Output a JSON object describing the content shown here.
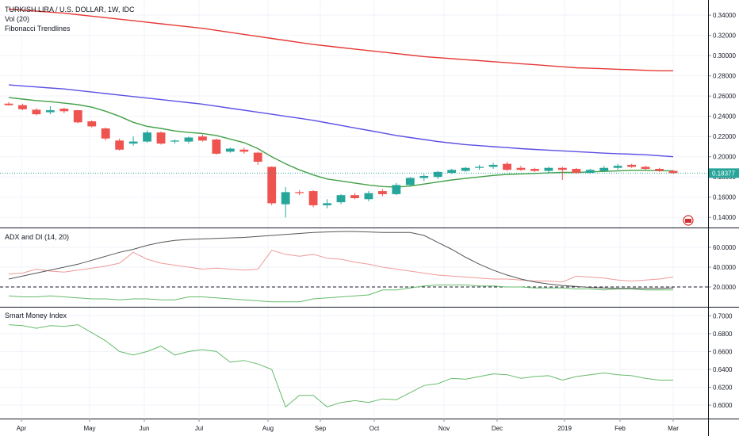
{
  "header": {
    "symbol_line": "TURKISH LIRA / U.S. DOLLAR, 1W, IDC",
    "indicator_1": "Vol (20)",
    "indicator_2": "Fibonacci Trendlines"
  },
  "price_badge": "0.18377",
  "colors": {
    "up": "#26a69a",
    "down": "#ef5350",
    "ma_short": "#43a047",
    "ma_mid": "#5b4fe3",
    "ma_long": "#e53935",
    "adx": "#555555",
    "di_plus": "#66bb6a",
    "di_minus": "#ef9a9a",
    "smi": "#66bb6a",
    "badge": "#26a69a"
  },
  "chart_data": [
    {
      "type": "candlestick",
      "title": "TURKISH LIRA / U.S. DOLLAR, 1W, IDC",
      "ylim": [
        0.13,
        0.355
      ],
      "y_ticks": [
        "0.14000",
        "0.16000",
        "0.18000",
        "0.20000",
        "0.22000",
        "0.24000",
        "0.26000",
        "0.28000",
        "0.30000",
        "0.32000",
        "0.34000"
      ],
      "x_labels": [
        "Apr",
        "May",
        "Jun",
        "Jul",
        "Aug",
        "Sep",
        "Oct",
        "Nov",
        "Dec",
        "2019",
        "Feb",
        "Mar"
      ],
      "candles": [
        [
          0.2525,
          0.254,
          0.2505,
          0.251
        ],
        [
          0.251,
          0.2525,
          0.246,
          0.247
        ],
        [
          0.2465,
          0.248,
          0.241,
          0.242
        ],
        [
          0.244,
          0.25,
          0.242,
          0.246
        ],
        [
          0.2475,
          0.2485,
          0.243,
          0.245
        ],
        [
          0.246,
          0.2465,
          0.233,
          0.234
        ],
        [
          0.235,
          0.236,
          0.229,
          0.23
        ],
        [
          0.228,
          0.229,
          0.216,
          0.218
        ],
        [
          0.216,
          0.218,
          0.206,
          0.207
        ],
        [
          0.213,
          0.22,
          0.211,
          0.215
        ],
        [
          0.215,
          0.226,
          0.214,
          0.224
        ],
        [
          0.224,
          0.225,
          0.212,
          0.213
        ],
        [
          0.215,
          0.217,
          0.213,
          0.216
        ],
        [
          0.215,
          0.22,
          0.213,
          0.219
        ],
        [
          0.22,
          0.222,
          0.215,
          0.216
        ],
        [
          0.217,
          0.218,
          0.202,
          0.203
        ],
        [
          0.205,
          0.209,
          0.204,
          0.208
        ],
        [
          0.207,
          0.209,
          0.203,
          0.205
        ],
        [
          0.204,
          0.205,
          0.192,
          0.195
        ],
        [
          0.19,
          0.1905,
          0.152,
          0.154
        ],
        [
          0.153,
          0.17,
          0.14,
          0.165
        ],
        [
          0.165,
          0.167,
          0.162,
          0.164
        ],
        [
          0.166,
          0.167,
          0.15,
          0.152
        ],
        [
          0.152,
          0.158,
          0.149,
          0.154
        ],
        [
          0.155,
          0.163,
          0.153,
          0.162
        ],
        [
          0.162,
          0.164,
          0.158,
          0.159
        ],
        [
          0.158,
          0.166,
          0.156,
          0.164
        ],
        [
          0.166,
          0.168,
          0.161,
          0.163
        ],
        [
          0.163,
          0.174,
          0.162,
          0.172
        ],
        [
          0.172,
          0.18,
          0.171,
          0.179
        ],
        [
          0.179,
          0.183,
          0.176,
          0.181
        ],
        [
          0.18,
          0.186,
          0.178,
          0.185
        ],
        [
          0.184,
          0.188,
          0.183,
          0.187
        ],
        [
          0.186,
          0.19,
          0.185,
          0.189
        ],
        [
          0.189,
          0.192,
          0.187,
          0.19
        ],
        [
          0.19,
          0.194,
          0.188,
          0.192
        ],
        [
          0.193,
          0.195,
          0.186,
          0.187
        ],
        [
          0.189,
          0.191,
          0.186,
          0.187
        ],
        [
          0.188,
          0.189,
          0.185,
          0.186
        ],
        [
          0.186,
          0.19,
          0.184,
          0.189
        ],
        [
          0.189,
          0.19,
          0.177,
          0.187
        ],
        [
          0.188,
          0.189,
          0.183,
          0.184
        ],
        [
          0.184,
          0.188,
          0.183,
          0.187
        ],
        [
          0.186,
          0.191,
          0.185,
          0.189
        ],
        [
          0.189,
          0.193,
          0.187,
          0.191
        ],
        [
          0.192,
          0.193,
          0.189,
          0.19
        ],
        [
          0.19,
          0.191,
          0.187,
          0.188
        ],
        [
          0.188,
          0.189,
          0.185,
          0.186
        ],
        [
          0.186,
          0.187,
          0.183,
          0.1838
        ]
      ],
      "ma_short": [
        0.2585,
        0.257,
        0.2555,
        0.2545,
        0.253,
        0.2515,
        0.249,
        0.245,
        0.24,
        0.234,
        0.23,
        0.228,
        0.2255,
        0.224,
        0.223,
        0.221,
        0.2175,
        0.214,
        0.208,
        0.2,
        0.193,
        0.187,
        0.182,
        0.178,
        0.176,
        0.174,
        0.172,
        0.1705,
        0.17,
        0.171,
        0.173,
        0.175,
        0.177,
        0.1785,
        0.18,
        0.1815,
        0.1825,
        0.183,
        0.1835,
        0.184,
        0.1845,
        0.1845,
        0.185,
        0.1855,
        0.186,
        0.1865,
        0.1865,
        0.1862,
        0.186
      ],
      "ma_mid": [
        0.271,
        0.27,
        0.269,
        0.268,
        0.267,
        0.2655,
        0.264,
        0.2625,
        0.261,
        0.2595,
        0.258,
        0.2565,
        0.255,
        0.2535,
        0.252,
        0.25,
        0.248,
        0.246,
        0.244,
        0.242,
        0.24,
        0.238,
        0.236,
        0.2335,
        0.231,
        0.2285,
        0.226,
        0.2235,
        0.221,
        0.219,
        0.217,
        0.215,
        0.2135,
        0.212,
        0.211,
        0.21,
        0.209,
        0.208,
        0.2072,
        0.2065,
        0.2058,
        0.205,
        0.2043,
        0.2035,
        0.203,
        0.2025,
        0.202,
        0.201,
        0.2
      ],
      "ma_long": [
        0.346,
        0.345,
        0.344,
        0.343,
        0.342,
        0.3405,
        0.339,
        0.3375,
        0.336,
        0.3345,
        0.333,
        0.3315,
        0.33,
        0.3285,
        0.327,
        0.325,
        0.323,
        0.321,
        0.319,
        0.317,
        0.315,
        0.313,
        0.311,
        0.3095,
        0.308,
        0.3065,
        0.305,
        0.3035,
        0.302,
        0.3005,
        0.299,
        0.298,
        0.297,
        0.296,
        0.295,
        0.294,
        0.293,
        0.292,
        0.291,
        0.29,
        0.289,
        0.288,
        0.2875,
        0.287,
        0.2865,
        0.286,
        0.2855,
        0.285,
        0.285
      ]
    },
    {
      "type": "line",
      "title": "ADX and DI (14, 20)",
      "ylim": [
        0,
        80
      ],
      "y_ticks": [
        "20.0000",
        "40.0000",
        "60.0000"
      ],
      "reference_line": 20,
      "series": [
        {
          "values": [
            28,
            31,
            34,
            37,
            40,
            43,
            47,
            51,
            55,
            58,
            62,
            65,
            67,
            68,
            68.5,
            69,
            69.5,
            70,
            71,
            72,
            73,
            74,
            75,
            75.5,
            76,
            76,
            75.5,
            75,
            75,
            75,
            72,
            65,
            58,
            50,
            43,
            37,
            32,
            28,
            25,
            23,
            21.5,
            20.5,
            19.5,
            19,
            18.5,
            18.5,
            18.5,
            18.5,
            19
          ]
        },
        {
          "values": [
            33,
            34,
            38,
            36,
            35,
            37,
            39,
            41,
            44,
            55,
            48,
            44,
            42,
            40,
            38,
            39,
            38,
            37,
            38,
            57,
            53,
            51,
            53,
            49,
            48,
            45,
            43,
            40,
            38,
            36,
            34,
            32,
            31,
            30,
            29,
            28,
            28,
            27,
            26,
            26,
            25,
            31,
            30,
            29,
            27,
            26,
            27,
            28,
            30
          ]
        },
        {
          "values": [
            11,
            10,
            10,
            11,
            10,
            9,
            8,
            8,
            7,
            8,
            8,
            7,
            7,
            10,
            10,
            9,
            8,
            7,
            6,
            5,
            5,
            5,
            8,
            9,
            10,
            11,
            12,
            17,
            17,
            19,
            21,
            22,
            22,
            22,
            21,
            21,
            20,
            20,
            19,
            19,
            19,
            18,
            18,
            17,
            18,
            18,
            17,
            17,
            17
          ]
        }
      ]
    },
    {
      "type": "line",
      "title": "Smart Money Index",
      "ylim": [
        0.585,
        0.71
      ],
      "y_ticks": [
        "0.6000",
        "0.6200",
        "0.6400",
        "0.6600",
        "0.6800",
        "0.7000"
      ],
      "series": [
        {
          "values": [
            0.69,
            0.689,
            0.686,
            0.689,
            0.688,
            0.69,
            0.681,
            0.672,
            0.66,
            0.656,
            0.66,
            0.666,
            0.656,
            0.66,
            0.662,
            0.66,
            0.648,
            0.65,
            0.646,
            0.64,
            0.598,
            0.611,
            0.611,
            0.598,
            0.603,
            0.605,
            0.603,
            0.607,
            0.606,
            0.614,
            0.622,
            0.624,
            0.63,
            0.629,
            0.632,
            0.635,
            0.634,
            0.63,
            0.632,
            0.633,
            0.628,
            0.632,
            0.634,
            0.636,
            0.634,
            0.633,
            0.63,
            0.628,
            0.628
          ]
        }
      ]
    }
  ]
}
